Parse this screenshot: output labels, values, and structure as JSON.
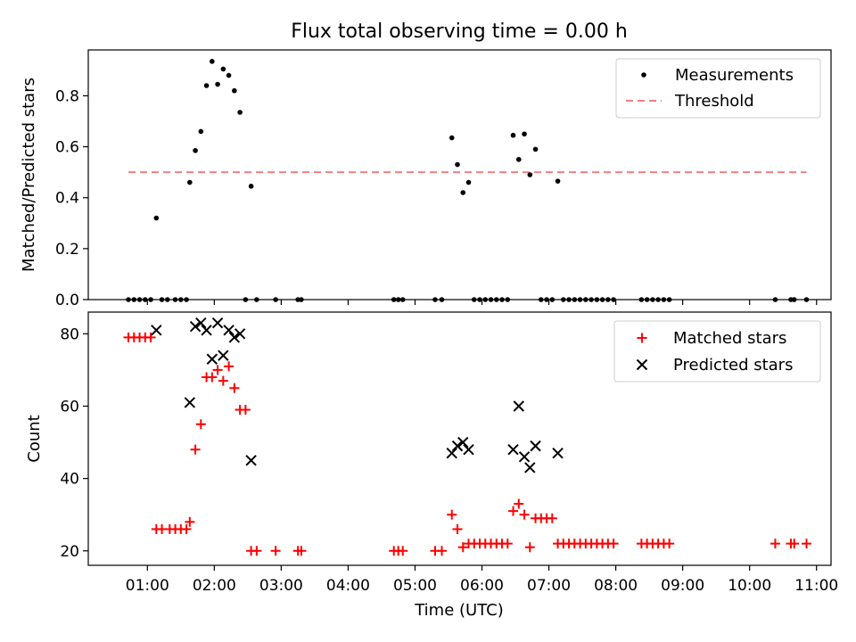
{
  "title": "Flux total observing time = 0.00 h",
  "chart_data": [
    {
      "type": "scatter",
      "ylabel": "Matched/Predicted stars",
      "ylim": [
        0,
        0.98
      ],
      "yticks": [
        "0.0",
        "0.2",
        "0.4",
        "0.6",
        "0.8"
      ],
      "ytick_values": [
        0,
        0.2,
        0.4,
        0.6,
        0.8
      ],
      "legend_position": "top-right",
      "grid": false,
      "threshold": 0.5,
      "threshold_range": [
        "00:43",
        "10:51"
      ],
      "series": [
        {
          "name": "Measurements",
          "marker": "dot",
          "color": "#000000",
          "points": [
            [
              "00:43",
              0
            ],
            [
              "00:48",
              0
            ],
            [
              "00:53",
              0
            ],
            [
              "00:58",
              0
            ],
            [
              "01:03",
              0
            ],
            [
              "01:08",
              0.32
            ],
            [
              "01:13",
              0
            ],
            [
              "01:18",
              0
            ],
            [
              "01:25",
              0
            ],
            [
              "01:30",
              0
            ],
            [
              "01:35",
              0
            ],
            [
              "01:38",
              0.46
            ],
            [
              "01:43",
              0.585
            ],
            [
              "01:48",
              0.66
            ],
            [
              "01:53",
              0.84
            ],
            [
              "01:58",
              0.935
            ],
            [
              "02:03",
              0.845
            ],
            [
              "02:08",
              0.905
            ],
            [
              "02:13",
              0.88
            ],
            [
              "02:18",
              0.82
            ],
            [
              "02:23",
              0.735
            ],
            [
              "02:28",
              0
            ],
            [
              "02:33",
              0.445
            ],
            [
              "02:38",
              0
            ],
            [
              "02:55",
              0
            ],
            [
              "03:15",
              0
            ],
            [
              "03:18",
              0
            ],
            [
              "04:41",
              0
            ],
            [
              "04:45",
              0
            ],
            [
              "04:49",
              0
            ],
            [
              "05:18",
              0
            ],
            [
              "05:24",
              0
            ],
            [
              "05:33",
              0.635
            ],
            [
              "05:38",
              0.53
            ],
            [
              "05:43",
              0.42
            ],
            [
              "05:48",
              0.46
            ],
            [
              "05:53",
              0
            ],
            [
              "05:58",
              0
            ],
            [
              "06:03",
              0
            ],
            [
              "06:08",
              0
            ],
            [
              "06:13",
              0
            ],
            [
              "06:18",
              0
            ],
            [
              "06:23",
              0
            ],
            [
              "06:28",
              0.645
            ],
            [
              "06:33",
              0.55
            ],
            [
              "06:38",
              0.65
            ],
            [
              "06:43",
              0.49
            ],
            [
              "06:48",
              0.59
            ],
            [
              "06:53",
              0
            ],
            [
              "06:58",
              0
            ],
            [
              "07:03",
              0
            ],
            [
              "07:08",
              0.465
            ],
            [
              "07:13",
              0
            ],
            [
              "07:18",
              0
            ],
            [
              "07:23",
              0
            ],
            [
              "07:28",
              0
            ],
            [
              "07:33",
              0
            ],
            [
              "07:38",
              0
            ],
            [
              "07:43",
              0
            ],
            [
              "07:48",
              0
            ],
            [
              "07:53",
              0
            ],
            [
              "07:58",
              0
            ],
            [
              "08:23",
              0
            ],
            [
              "08:28",
              0
            ],
            [
              "08:33",
              0
            ],
            [
              "08:38",
              0
            ],
            [
              "08:43",
              0
            ],
            [
              "08:48",
              0
            ],
            [
              "10:23",
              0
            ],
            [
              "10:37",
              0
            ],
            [
              "10:40",
              0
            ],
            [
              "10:51",
              0
            ]
          ]
        },
        {
          "name": "Threshold",
          "style": "dashed",
          "color": "#f08080"
        }
      ]
    },
    {
      "type": "scatter",
      "xlabel": "Time (UTC)",
      "ylabel": "Count",
      "ylim": [
        16,
        86
      ],
      "yticks": [
        "20",
        "40",
        "60",
        "80"
      ],
      "ytick_values": [
        20,
        40,
        60,
        80
      ],
      "xlim": [
        "00:07",
        "11:13"
      ],
      "xticks": [
        "01:00",
        "02:00",
        "03:00",
        "04:00",
        "05:00",
        "06:00",
        "07:00",
        "08:00",
        "09:00",
        "10:00",
        "11:00"
      ],
      "legend_position": "top-right",
      "grid": false,
      "series": [
        {
          "name": "Matched stars",
          "marker": "plus",
          "color": "#ff0000",
          "points": [
            [
              "00:43",
              79
            ],
            [
              "00:48",
              79
            ],
            [
              "00:53",
              79
            ],
            [
              "00:58",
              79
            ],
            [
              "01:03",
              79
            ],
            [
              "01:08",
              26
            ],
            [
              "01:13",
              26
            ],
            [
              "01:20",
              26
            ],
            [
              "01:25",
              26
            ],
            [
              "01:30",
              26
            ],
            [
              "01:35",
              26
            ],
            [
              "01:38",
              28
            ],
            [
              "01:43",
              48
            ],
            [
              "01:48",
              55
            ],
            [
              "01:53",
              68
            ],
            [
              "01:58",
              68
            ],
            [
              "02:03",
              70
            ],
            [
              "02:08",
              67
            ],
            [
              "02:13",
              71
            ],
            [
              "02:18",
              65
            ],
            [
              "02:23",
              59
            ],
            [
              "02:28",
              59
            ],
            [
              "02:33",
              20
            ],
            [
              "02:38",
              20
            ],
            [
              "02:55",
              20
            ],
            [
              "03:15",
              20
            ],
            [
              "03:18",
              20
            ],
            [
              "04:41",
              20
            ],
            [
              "04:45",
              20
            ],
            [
              "04:49",
              20
            ],
            [
              "05:18",
              20
            ],
            [
              "05:24",
              20
            ],
            [
              "05:33",
              30
            ],
            [
              "05:38",
              26
            ],
            [
              "05:43",
              21
            ],
            [
              "05:48",
              22
            ],
            [
              "05:53",
              22
            ],
            [
              "05:58",
              22
            ],
            [
              "06:03",
              22
            ],
            [
              "06:08",
              22
            ],
            [
              "06:13",
              22
            ],
            [
              "06:18",
              22
            ],
            [
              "06:23",
              22
            ],
            [
              "06:28",
              31
            ],
            [
              "06:33",
              33
            ],
            [
              "06:38",
              30
            ],
            [
              "06:43",
              21
            ],
            [
              "06:48",
              29
            ],
            [
              "06:53",
              29
            ],
            [
              "06:58",
              29
            ],
            [
              "07:03",
              29
            ],
            [
              "07:08",
              22
            ],
            [
              "07:13",
              22
            ],
            [
              "07:18",
              22
            ],
            [
              "07:23",
              22
            ],
            [
              "07:28",
              22
            ],
            [
              "07:33",
              22
            ],
            [
              "07:38",
              22
            ],
            [
              "07:43",
              22
            ],
            [
              "07:48",
              22
            ],
            [
              "07:53",
              22
            ],
            [
              "07:58",
              22
            ],
            [
              "08:23",
              22
            ],
            [
              "08:28",
              22
            ],
            [
              "08:33",
              22
            ],
            [
              "08:38",
              22
            ],
            [
              "08:43",
              22
            ],
            [
              "08:48",
              22
            ],
            [
              "10:23",
              22
            ],
            [
              "10:37",
              22
            ],
            [
              "10:40",
              22
            ],
            [
              "10:51",
              22
            ]
          ]
        },
        {
          "name": "Predicted stars",
          "marker": "x",
          "color": "#000000",
          "points": [
            [
              "01:08",
              81
            ],
            [
              "01:38",
              61
            ],
            [
              "01:43",
              82
            ],
            [
              "01:48",
              83
            ],
            [
              "01:53",
              81
            ],
            [
              "01:58",
              73
            ],
            [
              "02:03",
              83
            ],
            [
              "02:08",
              74
            ],
            [
              "02:13",
              81
            ],
            [
              "02:18",
              79
            ],
            [
              "02:23",
              80
            ],
            [
              "02:33",
              45
            ],
            [
              "05:33",
              47
            ],
            [
              "05:38",
              49
            ],
            [
              "05:43",
              50
            ],
            [
              "05:48",
              48
            ],
            [
              "06:28",
              48
            ],
            [
              "06:33",
              60
            ],
            [
              "06:38",
              46
            ],
            [
              "06:43",
              43
            ],
            [
              "06:48",
              49
            ],
            [
              "07:08",
              47
            ]
          ]
        }
      ]
    }
  ]
}
